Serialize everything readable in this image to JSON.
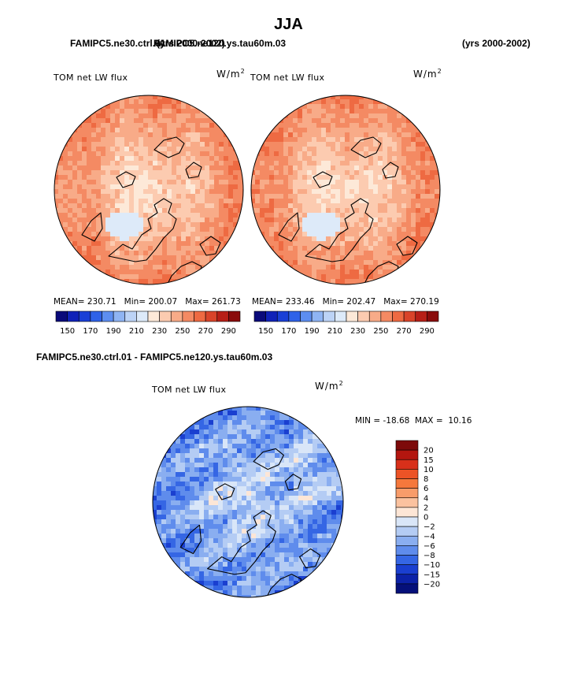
{
  "page_title": "JJA",
  "header": {
    "left_case": "FAMIPC5.ne30.ctrl.01",
    "right_case": "FAMIPC5.ne120.ys.tau60m.03",
    "left_years": "(yrs 2000-2002)",
    "right_years": "(yrs 2000-2002)"
  },
  "diff_title": "FAMIPC5.ne30.ctrl.01 - FAMIPC5.ne120.ys.tau60m.03",
  "panels": [
    {
      "variable": "TOM net LW flux",
      "units_base": "W/m",
      "units_exp": "2",
      "stats": {
        "mean_label": "MEAN=",
        "mean": "230.71",
        "min_label": "Min=",
        "min": "200.07",
        "max_label": "Max=",
        "max": "261.73"
      }
    },
    {
      "variable": "TOM net LW flux",
      "units_base": "W/m",
      "units_exp": "2",
      "stats": {
        "mean_label": "MEAN=",
        "mean": "233.46",
        "min_label": "Min=",
        "min": "202.47",
        "max_label": "Max=",
        "max": "270.19"
      }
    },
    {
      "variable": "TOM net LW flux",
      "units_base": "W/m",
      "units_exp": "2",
      "stats": {
        "min_label": "MIN =",
        "min": "-18.68",
        "max_label": "MAX =",
        "max": "10.16"
      }
    }
  ],
  "chart_data": [
    {
      "type": "heatmap",
      "projection": "north polar stereographic",
      "title": "TOM net LW flux",
      "units": "W/m^2",
      "case": "FAMIPC5.ne30.ctrl.01",
      "years": "(yrs 2000-2002)",
      "mean": 230.71,
      "min": 200.07,
      "max": 261.73,
      "colorbar_levels": [
        150,
        160,
        170,
        180,
        190,
        200,
        210,
        220,
        230,
        240,
        250,
        260,
        270,
        280,
        290
      ],
      "colorbar_tick_labels": [
        "150",
        "170",
        "190",
        "210",
        "230",
        "250",
        "270",
        "290"
      ],
      "colorbar_colors": [
        "#0a0a7a",
        "#1022b8",
        "#1a3fd6",
        "#2f62e8",
        "#5d8ef0",
        "#8fb4f3",
        "#bcd3f6",
        "#ddeaf9",
        "#fde9d8",
        "#fccbb0",
        "#f8ab88",
        "#f48a63",
        "#ee6a42",
        "#d9442a",
        "#b71f17",
        "#8a0c0c"
      ]
    },
    {
      "type": "heatmap",
      "projection": "north polar stereographic",
      "title": "TOM net LW flux",
      "units": "W/m^2",
      "case": "FAMIPC5.ne120.ys.tau60m.03",
      "years": "(yrs 2000-2002)",
      "mean": 233.46,
      "min": 202.47,
      "max": 270.19,
      "colorbar_levels": [
        150,
        160,
        170,
        180,
        190,
        200,
        210,
        220,
        230,
        240,
        250,
        260,
        270,
        280,
        290
      ],
      "colorbar_tick_labels": [
        "150",
        "170",
        "190",
        "210",
        "230",
        "250",
        "270",
        "290"
      ],
      "colorbar_colors": [
        "#0a0a7a",
        "#1022b8",
        "#1a3fd6",
        "#2f62e8",
        "#5d8ef0",
        "#8fb4f3",
        "#bcd3f6",
        "#ddeaf9",
        "#fde9d8",
        "#fccbb0",
        "#f8ab88",
        "#f48a63",
        "#ee6a42",
        "#d9442a",
        "#b71f17",
        "#8a0c0c"
      ]
    },
    {
      "type": "heatmap",
      "projection": "north polar stereographic",
      "title": "TOM net LW flux",
      "units": "W/m^2",
      "case": "FAMIPC5.ne30.ctrl.01 - FAMIPC5.ne120.ys.tau60m.03",
      "min": -18.68,
      "max": 10.16,
      "colorbar_levels": [
        -20,
        -15,
        -10,
        -8,
        -6,
        -4,
        -2,
        0,
        2,
        4,
        6,
        8,
        10,
        15,
        20
      ],
      "colorbar_tick_labels": [
        "20",
        "15",
        "10",
        "8",
        "6",
        "4",
        "2",
        "0",
        "−2",
        "−4",
        "−6",
        "−8",
        "−10",
        "−15",
        "−20"
      ],
      "colorbar_colors": [
        "#7d0a0a",
        "#b3160f",
        "#d8301a",
        "#ec5326",
        "#f5783c",
        "#f89c6a",
        "#fbc29f",
        "#fde6d6",
        "#d9e6f8",
        "#b4ccf4",
        "#8aaef0",
        "#5f8cec",
        "#3566e4",
        "#1a3fd0",
        "#0c22a8",
        "#05107a"
      ]
    }
  ],
  "colors": {
    "background": "#ffffff",
    "text": "#000000",
    "coastline": "#000000"
  }
}
